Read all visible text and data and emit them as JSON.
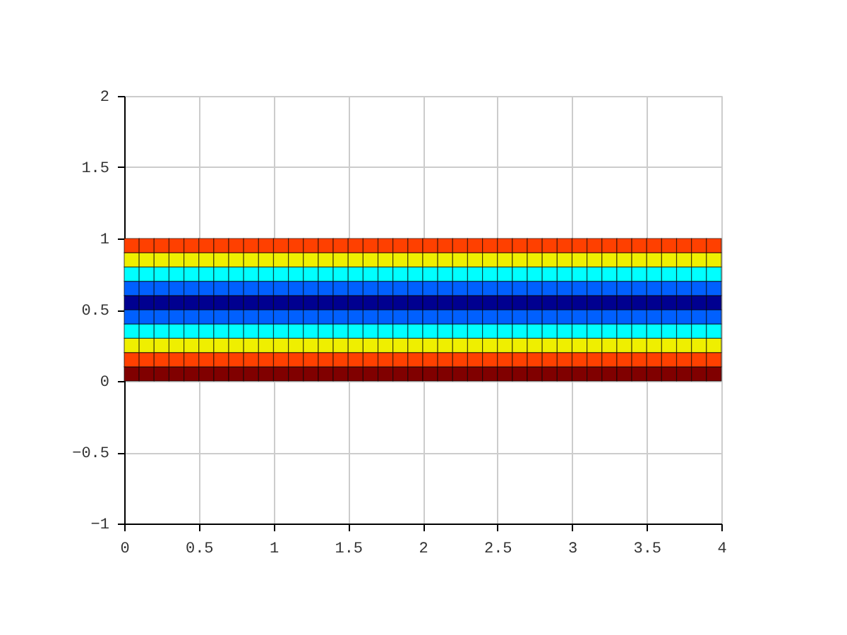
{
  "chart_data": {
    "type": "bar",
    "stacked": true,
    "x": [
      0.05,
      0.15,
      0.25,
      0.35,
      0.45,
      0.55,
      0.65,
      0.75,
      0.85,
      0.95,
      1.05,
      1.15,
      1.25,
      1.35,
      1.45,
      1.55,
      1.65,
      1.75,
      1.85,
      1.95,
      2.05,
      2.15,
      2.25,
      2.35,
      2.45,
      2.55,
      2.65,
      2.75,
      2.85,
      2.95,
      3.05,
      3.15,
      3.25,
      3.35,
      3.45,
      3.55,
      3.65,
      3.75,
      3.85,
      3.95
    ],
    "series": [
      {
        "color": "#800000",
        "values": [
          0.1,
          0.1,
          0.1,
          0.1,
          0.1,
          0.1,
          0.1,
          0.1,
          0.1,
          0.1,
          0.1,
          0.1,
          0.1,
          0.1,
          0.1,
          0.1,
          0.1,
          0.1,
          0.1,
          0.1,
          0.1,
          0.1,
          0.1,
          0.1,
          0.1,
          0.1,
          0.1,
          0.1,
          0.1,
          0.1,
          0.1,
          0.1,
          0.1,
          0.1,
          0.1,
          0.1,
          0.1,
          0.1,
          0.1,
          0.1
        ]
      },
      {
        "color": "#ff4000",
        "values": [
          0.1,
          0.1,
          0.1,
          0.1,
          0.1,
          0.1,
          0.1,
          0.1,
          0.1,
          0.1,
          0.1,
          0.1,
          0.1,
          0.1,
          0.1,
          0.1,
          0.1,
          0.1,
          0.1,
          0.1,
          0.1,
          0.1,
          0.1,
          0.1,
          0.1,
          0.1,
          0.1,
          0.1,
          0.1,
          0.1,
          0.1,
          0.1,
          0.1,
          0.1,
          0.1,
          0.1,
          0.1,
          0.1,
          0.1,
          0.1
        ]
      },
      {
        "color": "#efef00",
        "values": [
          0.1,
          0.1,
          0.1,
          0.1,
          0.1,
          0.1,
          0.1,
          0.1,
          0.1,
          0.1,
          0.1,
          0.1,
          0.1,
          0.1,
          0.1,
          0.1,
          0.1,
          0.1,
          0.1,
          0.1,
          0.1,
          0.1,
          0.1,
          0.1,
          0.1,
          0.1,
          0.1,
          0.1,
          0.1,
          0.1,
          0.1,
          0.1,
          0.1,
          0.1,
          0.1,
          0.1,
          0.1,
          0.1,
          0.1,
          0.1
        ]
      },
      {
        "color": "#00ffff",
        "values": [
          0.1,
          0.1,
          0.1,
          0.1,
          0.1,
          0.1,
          0.1,
          0.1,
          0.1,
          0.1,
          0.1,
          0.1,
          0.1,
          0.1,
          0.1,
          0.1,
          0.1,
          0.1,
          0.1,
          0.1,
          0.1,
          0.1,
          0.1,
          0.1,
          0.1,
          0.1,
          0.1,
          0.1,
          0.1,
          0.1,
          0.1,
          0.1,
          0.1,
          0.1,
          0.1,
          0.1,
          0.1,
          0.1,
          0.1,
          0.1
        ]
      },
      {
        "color": "#0060ff",
        "values": [
          0.1,
          0.1,
          0.1,
          0.1,
          0.1,
          0.1,
          0.1,
          0.1,
          0.1,
          0.1,
          0.1,
          0.1,
          0.1,
          0.1,
          0.1,
          0.1,
          0.1,
          0.1,
          0.1,
          0.1,
          0.1,
          0.1,
          0.1,
          0.1,
          0.1,
          0.1,
          0.1,
          0.1,
          0.1,
          0.1,
          0.1,
          0.1,
          0.1,
          0.1,
          0.1,
          0.1,
          0.1,
          0.1,
          0.1,
          0.1
        ]
      },
      {
        "color": "#000090",
        "values": [
          0.1,
          0.1,
          0.1,
          0.1,
          0.1,
          0.1,
          0.1,
          0.1,
          0.1,
          0.1,
          0.1,
          0.1,
          0.1,
          0.1,
          0.1,
          0.1,
          0.1,
          0.1,
          0.1,
          0.1,
          0.1,
          0.1,
          0.1,
          0.1,
          0.1,
          0.1,
          0.1,
          0.1,
          0.1,
          0.1,
          0.1,
          0.1,
          0.1,
          0.1,
          0.1,
          0.1,
          0.1,
          0.1,
          0.1,
          0.1
        ]
      },
      {
        "color": "#0060ff",
        "values": [
          0.1,
          0.1,
          0.1,
          0.1,
          0.1,
          0.1,
          0.1,
          0.1,
          0.1,
          0.1,
          0.1,
          0.1,
          0.1,
          0.1,
          0.1,
          0.1,
          0.1,
          0.1,
          0.1,
          0.1,
          0.1,
          0.1,
          0.1,
          0.1,
          0.1,
          0.1,
          0.1,
          0.1,
          0.1,
          0.1,
          0.1,
          0.1,
          0.1,
          0.1,
          0.1,
          0.1,
          0.1,
          0.1,
          0.1,
          0.1
        ]
      },
      {
        "color": "#00ffff",
        "values": [
          0.1,
          0.1,
          0.1,
          0.1,
          0.1,
          0.1,
          0.1,
          0.1,
          0.1,
          0.1,
          0.1,
          0.1,
          0.1,
          0.1,
          0.1,
          0.1,
          0.1,
          0.1,
          0.1,
          0.1,
          0.1,
          0.1,
          0.1,
          0.1,
          0.1,
          0.1,
          0.1,
          0.1,
          0.1,
          0.1,
          0.1,
          0.1,
          0.1,
          0.1,
          0.1,
          0.1,
          0.1,
          0.1,
          0.1,
          0.1
        ]
      },
      {
        "color": "#efef00",
        "values": [
          0.1,
          0.1,
          0.1,
          0.1,
          0.1,
          0.1,
          0.1,
          0.1,
          0.1,
          0.1,
          0.1,
          0.1,
          0.1,
          0.1,
          0.1,
          0.1,
          0.1,
          0.1,
          0.1,
          0.1,
          0.1,
          0.1,
          0.1,
          0.1,
          0.1,
          0.1,
          0.1,
          0.1,
          0.1,
          0.1,
          0.1,
          0.1,
          0.1,
          0.1,
          0.1,
          0.1,
          0.1,
          0.1,
          0.1,
          0.1
        ]
      },
      {
        "color": "#ff4000",
        "values": [
          0.1,
          0.1,
          0.1,
          0.1,
          0.1,
          0.1,
          0.1,
          0.1,
          0.1,
          0.1,
          0.1,
          0.1,
          0.1,
          0.1,
          0.1,
          0.1,
          0.1,
          0.1,
          0.1,
          0.1,
          0.1,
          0.1,
          0.1,
          0.1,
          0.1,
          0.1,
          0.1,
          0.1,
          0.1,
          0.1,
          0.1,
          0.1,
          0.1,
          0.1,
          0.1,
          0.1,
          0.1,
          0.1,
          0.1,
          0.1
        ]
      }
    ],
    "xlim": [
      0,
      4
    ],
    "xticks": [
      0,
      0.5,
      1,
      1.5,
      2,
      2.5,
      3,
      3.5,
      4
    ],
    "ylim": [
      -1,
      2
    ],
    "yticks": [
      -1,
      -0.5,
      0,
      0.5,
      1,
      1.5,
      2
    ],
    "grid": true
  }
}
